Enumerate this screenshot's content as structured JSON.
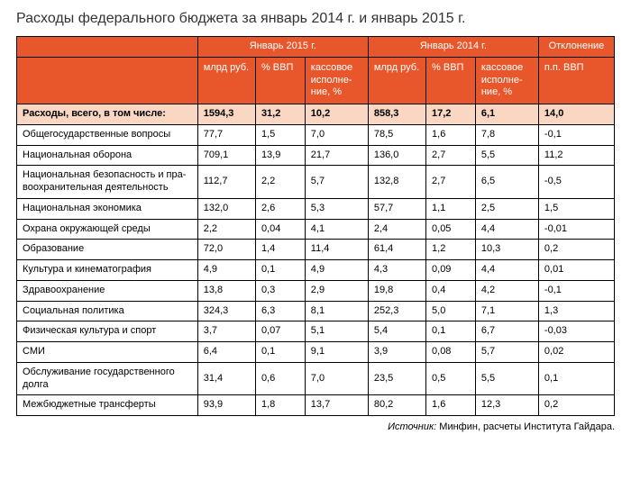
{
  "title": "Расходы федерального бюджета за январь 2014 г. и январь 2015 г.",
  "header": {
    "group2015": "Январь 2015 г.",
    "group2014": "Январь 2014 г.",
    "deviation": "Отклонение",
    "col_mlrd": "млрд руб.",
    "col_pct_vvp": "% ВВП",
    "col_kass": "кассовое исполне­ние, %",
    "col_pp_vvp": "п.п. ВВП"
  },
  "table": {
    "columns": [
      "label",
      "m2015",
      "v2015",
      "k2015",
      "m2014",
      "v2014",
      "k2014",
      "dev"
    ],
    "rows": [
      {
        "highlight": true,
        "label": "Расходы, всего, в том числе:",
        "m2015": "1594,3",
        "v2015": "31,2",
        "k2015": "10,2",
        "m2014": "858,3",
        "v2014": "17,2",
        "k2014": "6,1",
        "dev": "14,0"
      },
      {
        "label": "Общегосударственные вопросы",
        "m2015": "77,7",
        "v2015": "1,5",
        "k2015": "7,0",
        "m2014": "78,5",
        "v2014": "1,6",
        "k2014": "7,8",
        "dev": "-0,1"
      },
      {
        "label": "Национальная оборона",
        "m2015": "709,1",
        "v2015": "13,9",
        "k2015": "21,7",
        "m2014": "136,0",
        "v2014": "2,7",
        "k2014": "5,5",
        "dev": "11,2"
      },
      {
        "label": "Национальная безопасность и пра­воохранительная деятельность",
        "m2015": "112,7",
        "v2015": "2,2",
        "k2015": "5,7",
        "m2014": "132,8",
        "v2014": "2,7",
        "k2014": "6,5",
        "dev": "-0,5"
      },
      {
        "label": "Национальная экономика",
        "m2015": "132,0",
        "v2015": "2,6",
        "k2015": "5,3",
        "m2014": "57,7",
        "v2014": "1,1",
        "k2014": "2,5",
        "dev": "1,5"
      },
      {
        "label": "Охрана окружающей среды",
        "m2015": "2,2",
        "v2015": "0,04",
        "k2015": "4,1",
        "m2014": "2,4",
        "v2014": "0,05",
        "k2014": "4,4",
        "dev": "-0,01"
      },
      {
        "label": "Образование",
        "m2015": "72,0",
        "v2015": "1,4",
        "k2015": "11,4",
        "m2014": "61,4",
        "v2014": "1,2",
        "k2014": "10,3",
        "dev": "0,2"
      },
      {
        "label": "Культура и кинематография",
        "m2015": "4,9",
        "v2015": "0,1",
        "k2015": "4,9",
        "m2014": "4,3",
        "v2014": "0,09",
        "k2014": "4,4",
        "dev": "0,01"
      },
      {
        "label": "Здравоохранение",
        "m2015": "13,8",
        "v2015": "0,3",
        "k2015": "2,9",
        "m2014": "19,8",
        "v2014": "0,4",
        "k2014": "4,2",
        "dev": "-0,1"
      },
      {
        "label": "Социальная политика",
        "m2015": "324,3",
        "v2015": "6,3",
        "k2015": "8,1",
        "m2014": "252,3",
        "v2014": "5,0",
        "k2014": "7,1",
        "dev": "1,3"
      },
      {
        "label": "Физическая культура и спорт",
        "m2015": "3,7",
        "v2015": "0,07",
        "k2015": "5,1",
        "m2014": "5,4",
        "v2014": "0,1",
        "k2014": "6,7",
        "dev": "-0,03"
      },
      {
        "label": "СМИ",
        "m2015": "6,4",
        "v2015": "0,1",
        "k2015": "9,1",
        "m2014": "3,9",
        "v2014": "0,08",
        "k2014": "5,7",
        "dev": "0,02"
      },
      {
        "label": "Обслуживание государственного долга",
        "m2015": "31,4",
        "v2015": "0,6",
        "k2015": "7,0",
        "m2014": "23,5",
        "v2014": "0,5",
        "k2014": "5,5",
        "dev": "0,1"
      },
      {
        "label": "Межбюджетные трансферты",
        "m2015": "93,9",
        "v2015": "1,8",
        "k2015": "13,7",
        "m2014": "80,2",
        "v2014": "1,6",
        "k2014": "12,3",
        "dev": "0,2"
      }
    ]
  },
  "source_label": "Источник:",
  "source_text": "Минфин, расчеты Института Гайдара.",
  "styling": {
    "header_bg": "#e8572b",
    "header_fg": "#ffffff",
    "highlight_bg": "#f9d7c2",
    "border_color": "#000000",
    "body_bg": "#ffffff",
    "title_color": "#333333",
    "title_fontsize": 16,
    "cell_fontsize": 11,
    "source_fontsize": 11,
    "font_family": "Arial"
  }
}
